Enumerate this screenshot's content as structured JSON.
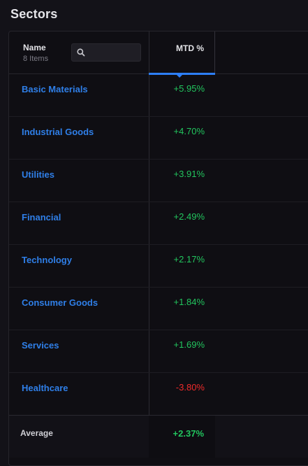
{
  "page": {
    "title": "Sectors"
  },
  "table": {
    "name_header": "Name",
    "items_count": "8 Items",
    "search": {
      "value": "",
      "placeholder": ""
    },
    "mtd_header": "MTD %",
    "sort_active": true,
    "rows": [
      {
        "name": "Basic Materials",
        "mtd": "+5.95%",
        "sign": "positive"
      },
      {
        "name": "Industrial Goods",
        "mtd": "+4.70%",
        "sign": "positive"
      },
      {
        "name": "Utilities",
        "mtd": "+3.91%",
        "sign": "positive"
      },
      {
        "name": "Financial",
        "mtd": "+2.49%",
        "sign": "positive"
      },
      {
        "name": "Technology",
        "mtd": "+2.17%",
        "sign": "positive"
      },
      {
        "name": "Consumer Goods",
        "mtd": "+1.84%",
        "sign": "positive"
      },
      {
        "name": "Services",
        "mtd": "+1.69%",
        "sign": "positive"
      },
      {
        "name": "Healthcare",
        "mtd": "-3.80%",
        "sign": "negative"
      }
    ],
    "footer": {
      "label": "Average",
      "value": "+2.37%"
    }
  },
  "colors": {
    "background": "#131218",
    "link": "#2f7fe8",
    "positive": "#22c55e",
    "negative": "#ef2b2b",
    "sort_accent": "#2d7ff9"
  },
  "icons": {
    "search": "search-icon"
  }
}
